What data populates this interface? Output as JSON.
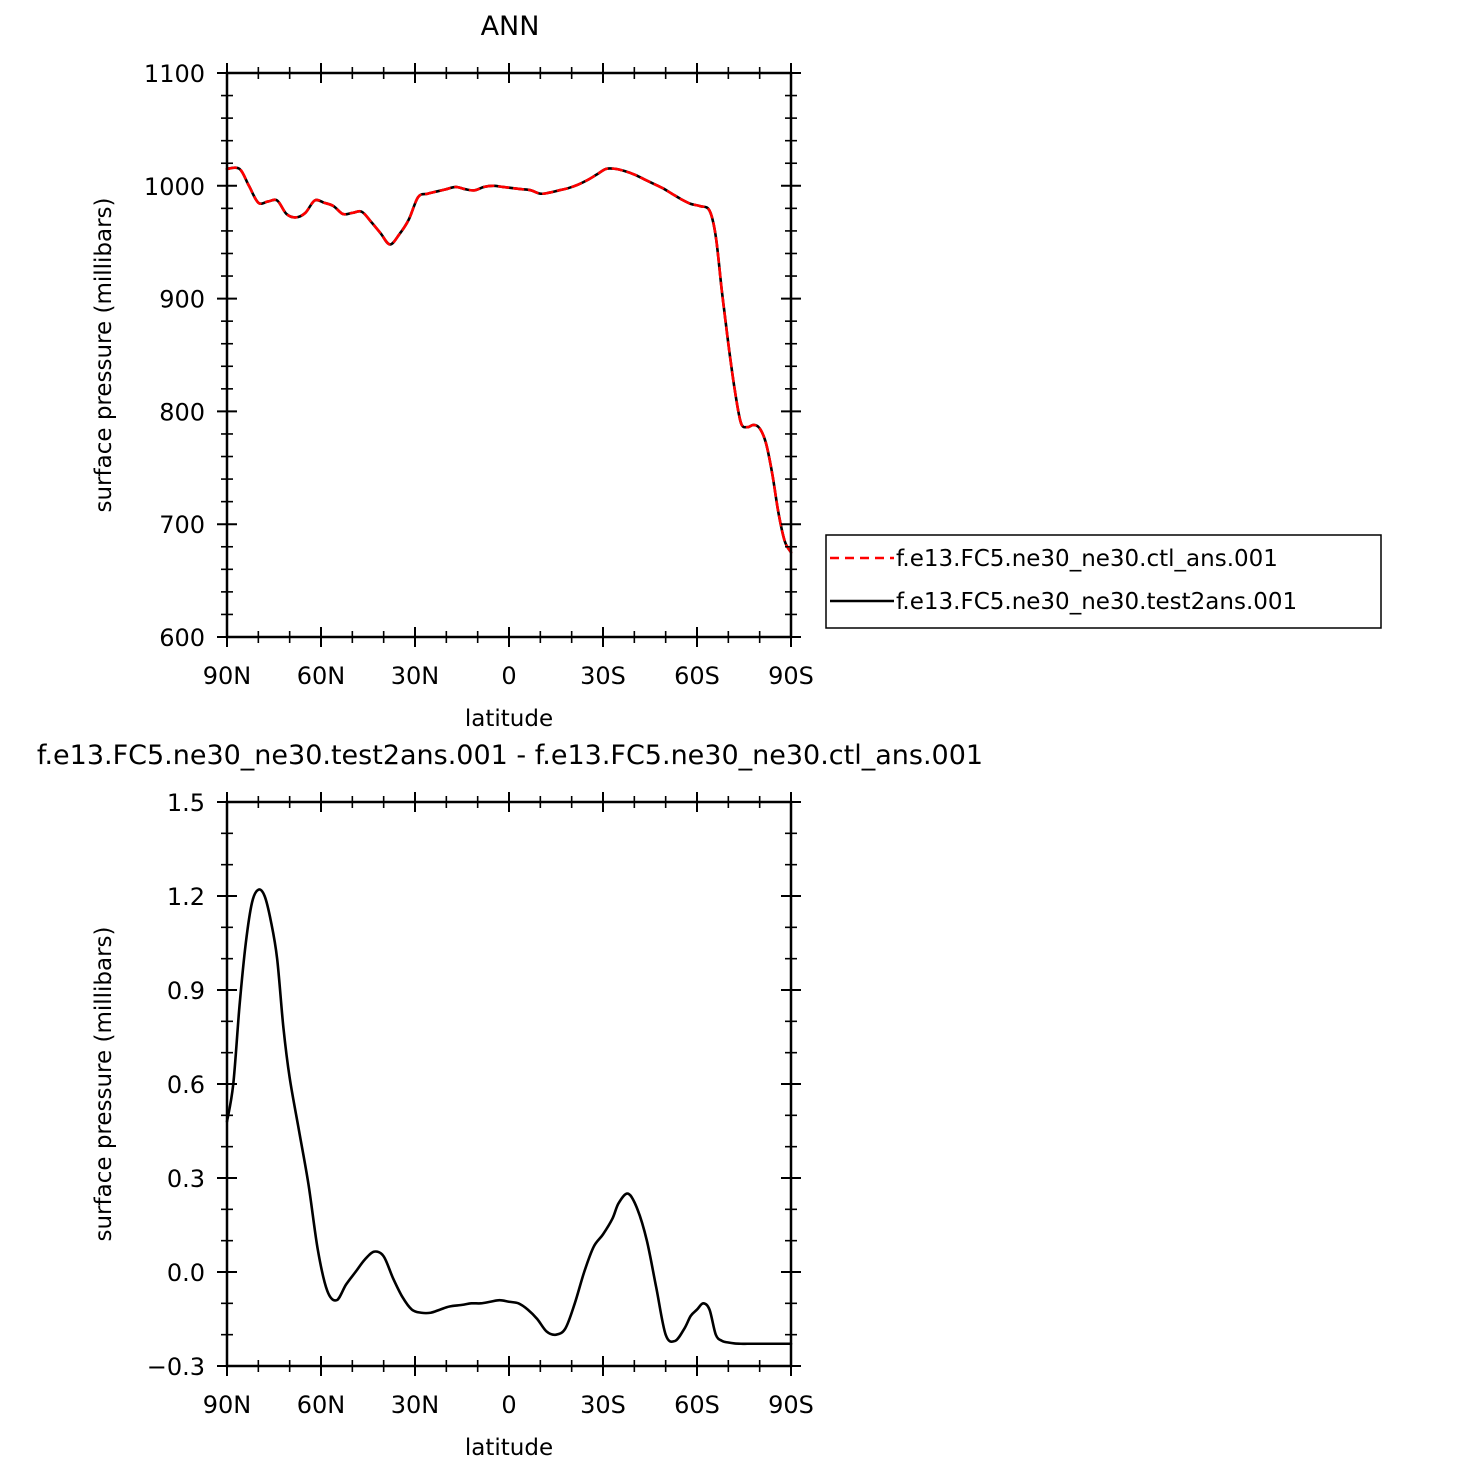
{
  "chart_data": [
    {
      "type": "line",
      "title": "ANN",
      "xlabel": "latitude",
      "ylabel": "surface pressure (millibars)",
      "x_ticks": [
        {
          "value": 90,
          "label": "90N"
        },
        {
          "value": 60,
          "label": "60N"
        },
        {
          "value": 30,
          "label": "30N"
        },
        {
          "value": 0,
          "label": "0"
        },
        {
          "value": -30,
          "label": "30S"
        },
        {
          "value": -60,
          "label": "60S"
        },
        {
          "value": -90,
          "label": "90S"
        }
      ],
      "y_ticks": [
        {
          "value": 600,
          "label": "600"
        },
        {
          "value": 700,
          "label": "700"
        },
        {
          "value": 800,
          "label": "800"
        },
        {
          "value": 900,
          "label": "900"
        },
        {
          "value": 1000,
          "label": "1000"
        },
        {
          "value": 1100,
          "label": "1100"
        }
      ],
      "xlim": [
        90,
        -90
      ],
      "ylim": [
        600,
        1100
      ],
      "grid": false,
      "legend_position": "right",
      "series": [
        {
          "name": "f.e13.FC5.ne30_ne30.ctl_ans.001",
          "color": "#ff0000",
          "style": "dashed",
          "x": [
            90,
            86,
            83,
            80,
            77,
            74,
            71,
            68,
            65,
            62,
            59,
            56,
            53,
            50,
            47,
            44,
            41,
            38,
            35,
            32,
            29,
            26,
            23,
            20,
            17,
            14,
            11,
            8,
            5,
            2,
            -1,
            -4,
            -7,
            -10,
            -13,
            -16,
            -19,
            -22,
            -25,
            -28,
            -31,
            -34,
            -37,
            -40,
            -43,
            -46,
            -49,
            -52,
            -55,
            -58,
            -61,
            -64,
            -66,
            -68,
            -70,
            -72,
            -74,
            -76,
            -78,
            -80,
            -82,
            -84,
            -86,
            -88,
            -90
          ],
          "y": [
            1015,
            1015,
            1000,
            985,
            986,
            987,
            975,
            972,
            976,
            987,
            985,
            982,
            975,
            976,
            977,
            968,
            958,
            948,
            957,
            970,
            990,
            993,
            995,
            997,
            999,
            997,
            996,
            999,
            1000,
            999,
            998,
            997,
            996,
            993,
            994,
            996,
            998,
            1001,
            1005,
            1010,
            1015,
            1015,
            1013,
            1010,
            1006,
            1002,
            998,
            993,
            988,
            984,
            982,
            978,
            955,
            905,
            860,
            820,
            790,
            786,
            788,
            785,
            772,
            745,
            710,
            685,
            675
          ]
        },
        {
          "name": "f.e13.FC5.ne30_ne30.test2ans.001",
          "color": "#000000",
          "style": "solid",
          "x": [
            90,
            86,
            83,
            80,
            77,
            74,
            71,
            68,
            65,
            62,
            59,
            56,
            53,
            50,
            47,
            44,
            41,
            38,
            35,
            32,
            29,
            26,
            23,
            20,
            17,
            14,
            11,
            8,
            5,
            2,
            -1,
            -4,
            -7,
            -10,
            -13,
            -16,
            -19,
            -22,
            -25,
            -28,
            -31,
            -34,
            -37,
            -40,
            -43,
            -46,
            -49,
            -52,
            -55,
            -58,
            -61,
            -64,
            -66,
            -68,
            -70,
            -72,
            -74,
            -76,
            -78,
            -80,
            -82,
            -84,
            -86,
            -88,
            -90
          ],
          "y": [
            1015,
            1015,
            1000,
            985,
            986,
            987,
            975,
            972,
            976,
            987,
            985,
            982,
            975,
            976,
            977,
            968,
            958,
            948,
            957,
            970,
            990,
            993,
            995,
            997,
            999,
            997,
            996,
            999,
            1000,
            999,
            998,
            997,
            996,
            993,
            994,
            996,
            998,
            1001,
            1005,
            1010,
            1015,
            1015,
            1013,
            1010,
            1006,
            1002,
            998,
            993,
            988,
            984,
            982,
            978,
            955,
            905,
            860,
            820,
            790,
            786,
            788,
            785,
            772,
            745,
            710,
            685,
            675
          ]
        }
      ]
    },
    {
      "type": "line",
      "title": "f.e13.FC5.ne30_ne30.test2ans.001 - f.e13.FC5.ne30_ne30.ctl_ans.001",
      "xlabel": "latitude",
      "ylabel": "surface pressure (millibars)",
      "x_ticks": [
        {
          "value": 90,
          "label": "90N"
        },
        {
          "value": 60,
          "label": "60N"
        },
        {
          "value": 30,
          "label": "30N"
        },
        {
          "value": 0,
          "label": "0"
        },
        {
          "value": -30,
          "label": "30S"
        },
        {
          "value": -60,
          "label": "60S"
        },
        {
          "value": -90,
          "label": "90S"
        }
      ],
      "y_ticks": [
        {
          "value": -0.3,
          "label": "−0.3"
        },
        {
          "value": 0.0,
          "label": "0.0"
        },
        {
          "value": 0.3,
          "label": "0.3"
        },
        {
          "value": 0.6,
          "label": "0.6"
        },
        {
          "value": 0.9,
          "label": "0.9"
        },
        {
          "value": 1.2,
          "label": "1.2"
        },
        {
          "value": 1.5,
          "label": "1.5"
        }
      ],
      "xlim": [
        90,
        -90
      ],
      "ylim": [
        -0.3,
        1.5
      ],
      "grid": false,
      "series": [
        {
          "color": "#000000",
          "style": "solid",
          "x": [
            90,
            88,
            86,
            84,
            82,
            80,
            78,
            76,
            74,
            72,
            70,
            67,
            64,
            61,
            58,
            55,
            52,
            49,
            46,
            43,
            40,
            37,
            34,
            31,
            28,
            25,
            22,
            19,
            15,
            12,
            9,
            6,
            3,
            0,
            -3,
            -6,
            -9,
            -12,
            -15,
            -18,
            -21,
            -24,
            -27,
            -30,
            -33,
            -35,
            -38,
            -41,
            -44,
            -47,
            -50,
            -53,
            -56,
            -58,
            -60,
            -62,
            -64,
            -66,
            -68,
            -70,
            -72,
            -74,
            -76,
            -78,
            -80,
            -82,
            -84,
            -86,
            -88,
            -90
          ],
          "y": [
            0.48,
            0.6,
            0.85,
            1.05,
            1.18,
            1.22,
            1.2,
            1.12,
            1.0,
            0.78,
            0.62,
            0.45,
            0.28,
            0.07,
            -0.06,
            -0.09,
            -0.04,
            0.0,
            0.04,
            0.065,
            0.05,
            -0.02,
            -0.08,
            -0.12,
            -0.13,
            -0.13,
            -0.12,
            -0.11,
            -0.105,
            -0.1,
            -0.1,
            -0.095,
            -0.09,
            -0.095,
            -0.1,
            -0.12,
            -0.15,
            -0.19,
            -0.2,
            -0.18,
            -0.1,
            0.0,
            0.08,
            0.12,
            0.17,
            0.22,
            0.25,
            0.2,
            0.1,
            -0.05,
            -0.2,
            -0.22,
            -0.18,
            -0.14,
            -0.12,
            -0.1,
            -0.12,
            -0.2,
            -0.22,
            -0.225,
            -0.228,
            -0.229,
            -0.229,
            -0.229,
            -0.229,
            -0.229,
            -0.229,
            -0.229,
            -0.229,
            -0.229
          ]
        }
      ]
    }
  ]
}
